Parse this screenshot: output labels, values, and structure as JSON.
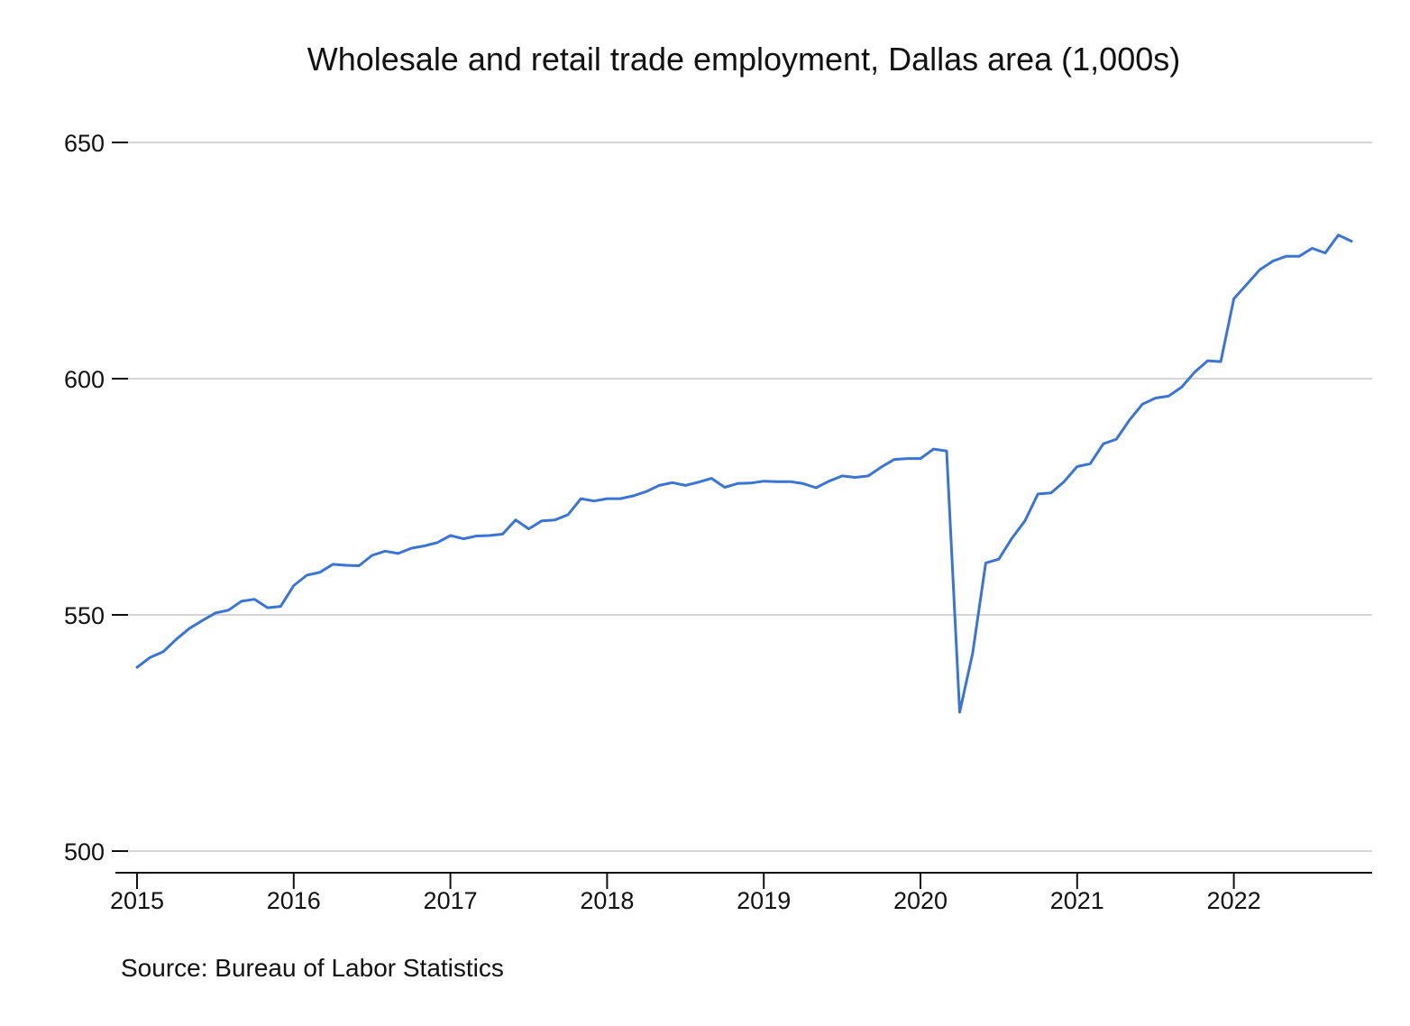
{
  "chart_data": {
    "type": "line",
    "title": "Wholesale and retail trade employment, Dallas area (1,000s)",
    "source": "Source: Bureau of Labor Statistics",
    "xlabel": "",
    "ylabel": "",
    "ylim": [
      500,
      650
    ],
    "yticks": [
      500,
      550,
      600,
      650
    ],
    "x_start": 2015.0,
    "x_step_months": 1,
    "xticks": [
      2015,
      2016,
      2017,
      2018,
      2019,
      2020,
      2021,
      2022
    ],
    "xlim": [
      2015,
      2022.9
    ],
    "grid": true,
    "legend": "none",
    "series_color": "#3a75d4",
    "series": [
      {
        "values": [
          538.9,
          541.0,
          542.2,
          544.8,
          547.1,
          548.8,
          550.4,
          551.0,
          552.9,
          553.3,
          551.5,
          551.8,
          556.2,
          558.4,
          559.0,
          560.7,
          560.5,
          560.4,
          562.6,
          563.5,
          563.0,
          564.1,
          564.6,
          565.3,
          566.8,
          566.1,
          566.7,
          566.8,
          567.1,
          570.1,
          568.2,
          569.9,
          570.1,
          571.2,
          574.6,
          574.1,
          574.6,
          574.6,
          575.2,
          576.1,
          577.4,
          578.0,
          577.4,
          578.1,
          578.9,
          577.0,
          577.8,
          577.9,
          578.3,
          578.2,
          578.2,
          577.8,
          576.9,
          578.3,
          579.4,
          579.1,
          579.4,
          581.3,
          582.9,
          583.1,
          583.1,
          585.1,
          584.7,
          529.4,
          541.9,
          561.0,
          561.8,
          566.2,
          569.9,
          575.6,
          575.8,
          578.2,
          581.4,
          582.0,
          586.2,
          587.2,
          591.2,
          594.6,
          595.9,
          596.3,
          598.2,
          601.4,
          603.8,
          603.6,
          616.9,
          620.0,
          623.1,
          624.9,
          625.9,
          625.9,
          627.6,
          626.6,
          630.4,
          629.1
        ]
      }
    ]
  }
}
